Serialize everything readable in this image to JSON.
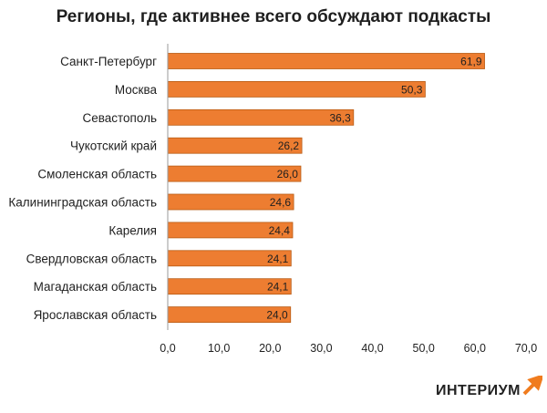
{
  "chart_data": {
    "type": "bar",
    "orientation": "horizontal",
    "title": "Регионы, где активнее всего обсуждают подкасты",
    "categories": [
      "Санкт-Петербург",
      "Москва",
      "Севастополь",
      "Чукотский край",
      "Смоленская область",
      "Калининградская область",
      "Карелия",
      "Свердловская область",
      "Магаданская область",
      "Ярославская область"
    ],
    "values": [
      61.9,
      50.3,
      36.3,
      26.2,
      26.0,
      24.6,
      24.4,
      24.1,
      24.1,
      24.0
    ],
    "value_labels": [
      "61,9",
      "50,3",
      "36,3",
      "26,2",
      "26,0",
      "24,6",
      "24,4",
      "24,1",
      "24,1",
      "24,0"
    ],
    "xlim": [
      0,
      70
    ],
    "xticks": [
      "0,0",
      "10,0",
      "20,0",
      "30,0",
      "40,0",
      "50,0",
      "60,0",
      "70,0"
    ],
    "grid": false,
    "bar_color": "#ED7D31",
    "bar_border_color": "#B85A12"
  },
  "logo": {
    "text": "ИНТЕРИУМ",
    "accent_color": "#F07C1E"
  }
}
